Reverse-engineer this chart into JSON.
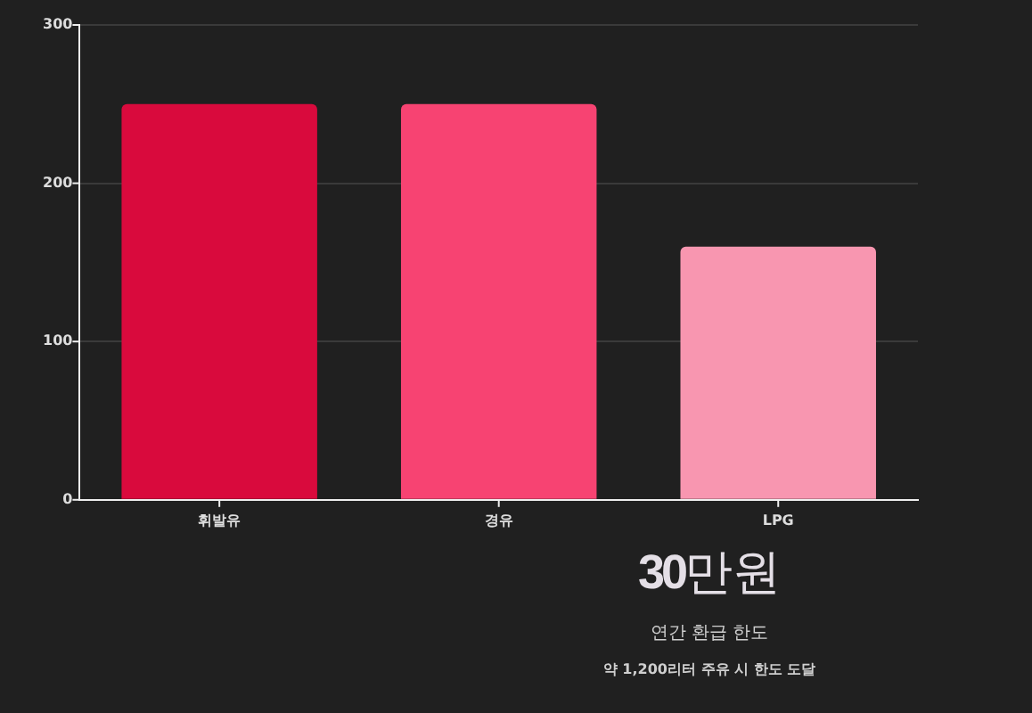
{
  "chart_data": {
    "type": "bar",
    "categories": [
      "휘발유",
      "경유",
      "LPG"
    ],
    "values": [
      250,
      250,
      160
    ],
    "colors": [
      "#d90a3d",
      "#f74372",
      "#f896b0"
    ],
    "ylim": [
      0,
      300
    ],
    "yticks": [
      0,
      100,
      200,
      300
    ],
    "grid": "y",
    "legend": false,
    "annotations": [
      "30만원",
      "연간 환급 한도",
      "약 1,200리터 주유 시 한도 도달"
    ]
  }
}
